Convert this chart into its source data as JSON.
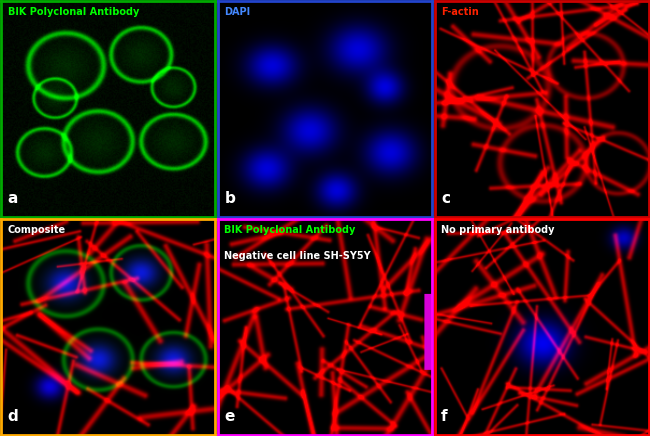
{
  "figsize": [
    6.5,
    4.36
  ],
  "dpi": 100,
  "panels": [
    {
      "label": "a",
      "title": "BIK Polyclonal Antibody",
      "title_color": "#00ff00",
      "border_color": "#00aa00"
    },
    {
      "label": "b",
      "title": "DAPI",
      "title_color": "#4488ff",
      "border_color": "#2244cc"
    },
    {
      "label": "c",
      "title": "F-actin",
      "title_color": "#ff2200",
      "border_color": "#cc0000"
    },
    {
      "label": "d",
      "title": "Composite",
      "title_color": "#ffffff",
      "border_color": "#ffaa00"
    },
    {
      "label": "e",
      "title": "BIK Polyclonal Antibody",
      "title2": "Negative cell line SH-SY5Y",
      "title_color": "#00ff00",
      "title_color2": "#ffffff",
      "border_color": "#ff00ff"
    },
    {
      "label": "f",
      "title": "No primary antibody",
      "title_color": "#ffffff",
      "border_color": "#ff0000"
    }
  ]
}
